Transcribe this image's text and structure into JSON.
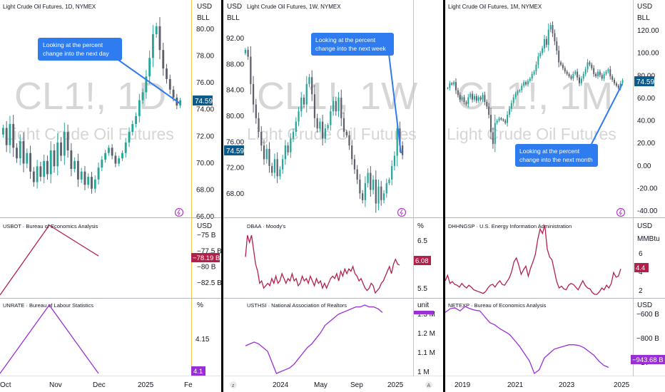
{
  "chart_data": [
    {
      "type": "candlestick",
      "title": "Light Crude Oil Futures, 1D, NYMEX",
      "watermark": {
        "symbol": "CL1!, 1D",
        "name": "Light Crude Oil Futures"
      },
      "currency": "USD",
      "unit": "BLL",
      "ylim": [
        66,
        81
      ],
      "yticks": [
        "80.00",
        "78.00",
        "76.00",
        "74.00",
        "72.00",
        "70.00",
        "68.00",
        "66.00"
      ],
      "last_price": "74.59",
      "annotation": "Looking at the percent change into the next day",
      "series_close": [
        72.5,
        71.2,
        72.8,
        71.0,
        70.2,
        71.5,
        69.8,
        70.6,
        69.2,
        68.4,
        69.6,
        68.8,
        70.0,
        69.0,
        70.8,
        69.6,
        71.4,
        70.4,
        72.2,
        70.8,
        69.4,
        70.0,
        68.6,
        69.2,
        68.2,
        68.8,
        67.9,
        68.6,
        69.5,
        70.1,
        70.6,
        71.0,
        70.4,
        69.8,
        70.2,
        70.6,
        71.4,
        72.2,
        72.8,
        73.4,
        74.6,
        75.2,
        76.4,
        77.8,
        79.6,
        80.2,
        78.4,
        77.0,
        76.2,
        75.4,
        74.8,
        74.2,
        74.59
      ]
    },
    {
      "type": "candlestick",
      "title": "Light Crude Oil Futures, 1W, NYMEX",
      "watermark": {
        "symbol": "CL1!, 1W",
        "name": "Light Crude Oil Futures"
      },
      "currency": "USD",
      "unit": "BLL",
      "ylim": [
        66,
        95
      ],
      "yticks": [
        "92.00",
        "88.00",
        "84.00",
        "80.00",
        "76.00",
        "72.00",
        "68.00"
      ],
      "last_price": "74.59",
      "xticks": [
        "2024",
        "May",
        "Sep",
        "2025"
      ],
      "annotation": "Looking at the percent change into the next week",
      "series_close": [
        90.0,
        89.0,
        85.0,
        82.0,
        80.0,
        78.0,
        76.0,
        74.0,
        75.5,
        73.0,
        72.0,
        74.0,
        71.5,
        72.5,
        74.0,
        76.0,
        75.0,
        77.0,
        78.0,
        79.5,
        81.0,
        83.0,
        82.0,
        85.0,
        86.0,
        83.5,
        80.0,
        78.5,
        79.5,
        77.0,
        78.5,
        79.0,
        81.0,
        82.5,
        81.0,
        83.0,
        80.0,
        78.0,
        77.5,
        76.0,
        74.0,
        72.5,
        71.0,
        69.0,
        68.0,
        70.5,
        72.0,
        69.5,
        71.0,
        67.5,
        70.0,
        68.0,
        69.0,
        70.5,
        71.0,
        73.0,
        74.5,
        78.5,
        76.0,
        74.59
      ]
    },
    {
      "type": "candlestick",
      "title": "Light Crude Oil Futures, 1M, NYMEX",
      "watermark": {
        "symbol": "CL1!, 1M",
        "name": "Light Crude Oil Futures"
      },
      "currency": "USD",
      "unit": "BLL",
      "ylim": [
        -40,
        130
      ],
      "yticks": [
        "120.00",
        "100.00",
        "80.00",
        "60.00",
        "40.00",
        "20.00",
        "0.00",
        "-20.00",
        "-40.00"
      ],
      "last_price": "74.59",
      "xticks": [
        "2019",
        "2021",
        "2023",
        "2025"
      ],
      "annotation": "Looking at the percent change into the next month",
      "series_close": [
        68,
        72,
        71,
        73,
        66,
        62,
        58,
        60,
        56,
        54,
        60,
        63,
        58,
        61,
        57,
        60,
        58,
        62,
        56,
        52,
        45,
        30,
        20,
        38,
        40,
        42,
        41,
        40,
        38,
        45,
        50,
        55,
        60,
        63,
        65,
        66,
        70,
        73,
        71,
        74,
        76,
        80,
        82,
        88,
        95,
        98,
        102,
        110,
        105,
        118,
        122,
        115,
        108,
        100,
        90,
        88,
        85,
        82,
        80,
        78,
        76,
        80,
        82,
        77,
        72,
        76,
        80,
        84,
        90,
        88,
        85,
        80,
        78,
        82,
        79,
        76,
        80,
        82,
        84,
        78,
        75,
        72,
        70,
        68,
        72,
        74.59
      ]
    },
    {
      "type": "line",
      "title": "USBOT · Bureau of Economics Analysis",
      "currency": "USD",
      "yticks": [
        "−75 B",
        "−77.5 B",
        "−80 B",
        "−82.5 B"
      ],
      "last_value": "−78.19 B",
      "color": "#b3214b",
      "x": [
        0,
        1,
        2
      ],
      "values": [
        -84.8,
        -73.0,
        -78.19
      ]
    },
    {
      "type": "line",
      "title": "DBAA · Moody's",
      "unit": "%",
      "yticks": [
        "6.5",
        "5.5"
      ],
      "last_value": "6.08",
      "color": "#b3214b",
      "values": [
        6.25,
        6.7,
        6.55,
        6.7,
        6.4,
        6.1,
        5.95,
        5.7,
        5.75,
        5.6,
        5.65,
        5.7,
        5.65,
        5.8,
        5.7,
        5.85,
        5.7,
        5.75,
        5.9,
        5.8,
        5.7,
        5.8,
        5.75,
        5.9,
        5.75,
        5.8,
        5.65,
        5.7,
        5.85,
        5.75,
        5.8,
        5.7,
        5.85,
        5.75,
        5.65,
        5.8,
        5.7,
        5.75,
        5.6,
        5.7,
        5.6,
        5.7,
        5.8,
        5.85,
        5.8,
        5.9,
        5.75,
        5.95,
        5.85,
        6.0,
        5.9,
        6.0,
        5.95,
        6.05,
        5.9,
        5.85,
        5.75,
        5.8,
        5.7,
        5.6,
        5.55,
        5.6,
        5.7,
        5.65,
        5.5,
        5.55,
        5.6,
        5.7,
        5.75,
        5.85,
        5.95,
        6.05,
        5.9,
        6.1,
        6.2,
        6.1,
        6.08
      ]
    },
    {
      "type": "line",
      "title": "DHHNGSP · U.S. Energy Information Administration",
      "currency": "USD",
      "unit": "MMBtu",
      "yticks": [
        "6",
        "4",
        "2"
      ],
      "last_value": "4.4",
      "color": "#b3214b",
      "values": [
        3.1,
        3.7,
        2.8,
        3.0,
        2.7,
        2.6,
        2.4,
        2.8,
        2.5,
        2.3,
        2.6,
        2.4,
        2.1,
        2.0,
        1.9,
        1.8,
        1.7,
        1.9,
        2.3,
        2.6,
        2.7,
        2.4,
        2.8,
        3.1,
        2.7,
        2.6,
        3.0,
        3.4,
        4.1,
        5.2,
        5.6,
        4.8,
        3.8,
        4.3,
        4.7,
        3.6,
        4.5,
        5.2,
        6.0,
        7.6,
        8.8,
        8.3,
        9.2,
        6.6,
        5.7,
        5.4,
        4.2,
        3.0,
        2.3,
        2.5,
        2.2,
        2.1,
        2.6,
        2.8,
        2.7,
        2.4,
        2.1,
        2.6,
        3.1,
        2.6,
        2.3,
        2.2,
        1.8,
        1.6,
        1.6,
        1.9,
        2.3,
        2.1,
        2.6,
        2.3,
        2.8,
        4.0,
        3.5,
        3.6,
        4.4
      ]
    },
    {
      "type": "line",
      "title": "UNRATE · Bureau of Labour Statistics",
      "unit": "%",
      "yticks": [
        "4.15"
      ],
      "last_value": "4.1",
      "color": "#9b2fd6",
      "xticks": [
        "Oct",
        "Nov",
        "Dec",
        "2025",
        "Fe"
      ],
      "x": [
        0,
        1,
        2
      ],
      "values": [
        4.1,
        4.2,
        4.1
      ]
    },
    {
      "type": "line",
      "title": "USTHSI · National Association of Realtors",
      "unit": "unit",
      "yticks": [
        "1.3 M",
        "1.2 M",
        "1.1 M",
        "1 M"
      ],
      "color": "#9b2fd6",
      "values": [
        1.14,
        1.15,
        1.16,
        1.15,
        1.13,
        1.11,
        1.05,
        0.99,
        1.0,
        1.01,
        1.02,
        1.04,
        1.07,
        1.1,
        1.13,
        1.15,
        1.18,
        1.21,
        1.25,
        1.27,
        1.29,
        1.31,
        1.32,
        1.33,
        1.34,
        1.35,
        1.35,
        1.36,
        1.35,
        1.35,
        1.34,
        1.32
      ]
    },
    {
      "type": "line",
      "title": "NETEXP · Bureau of Economics Analysis",
      "currency": "USD",
      "yticks": [
        "−600 B",
        "−800 B",
        "−1T"
      ],
      "last_value": "−943.68 B",
      "color": "#9b2fd6",
      "values": [
        -570,
        -545,
        -540,
        -560,
        -530,
        -545,
        -555,
        -560,
        -600,
        -640,
        -655,
        -680,
        -700,
        -720,
        -760,
        -800,
        -850,
        -900,
        -985,
        -960,
        -880,
        -850,
        -820,
        -810,
        -800,
        -790,
        -790,
        -795,
        -810,
        -835,
        -860,
        -900,
        -930,
        -943.68
      ]
    }
  ]
}
